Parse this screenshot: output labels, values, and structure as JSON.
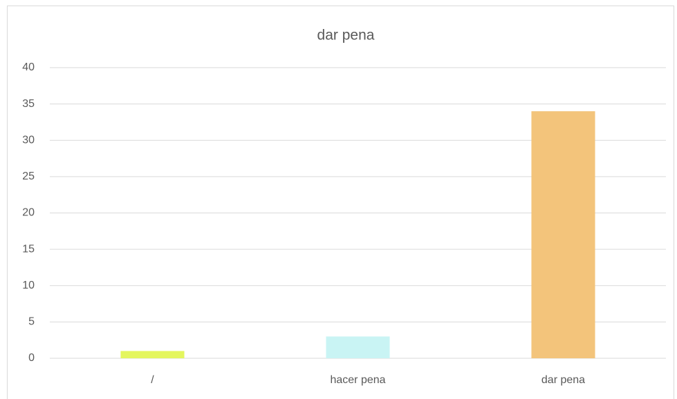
{
  "chart_data": {
    "type": "bar",
    "title": "dar pena",
    "categories": [
      "/",
      "hacer pena",
      "dar pena"
    ],
    "values": [
      1,
      3,
      34
    ],
    "colors": [
      "#e4f65e",
      "#c9f4f4",
      "#f3c47b"
    ],
    "ylim": [
      0,
      40
    ],
    "yticks": [
      0,
      5,
      10,
      15,
      20,
      25,
      30,
      35,
      40
    ],
    "grid": true
  }
}
